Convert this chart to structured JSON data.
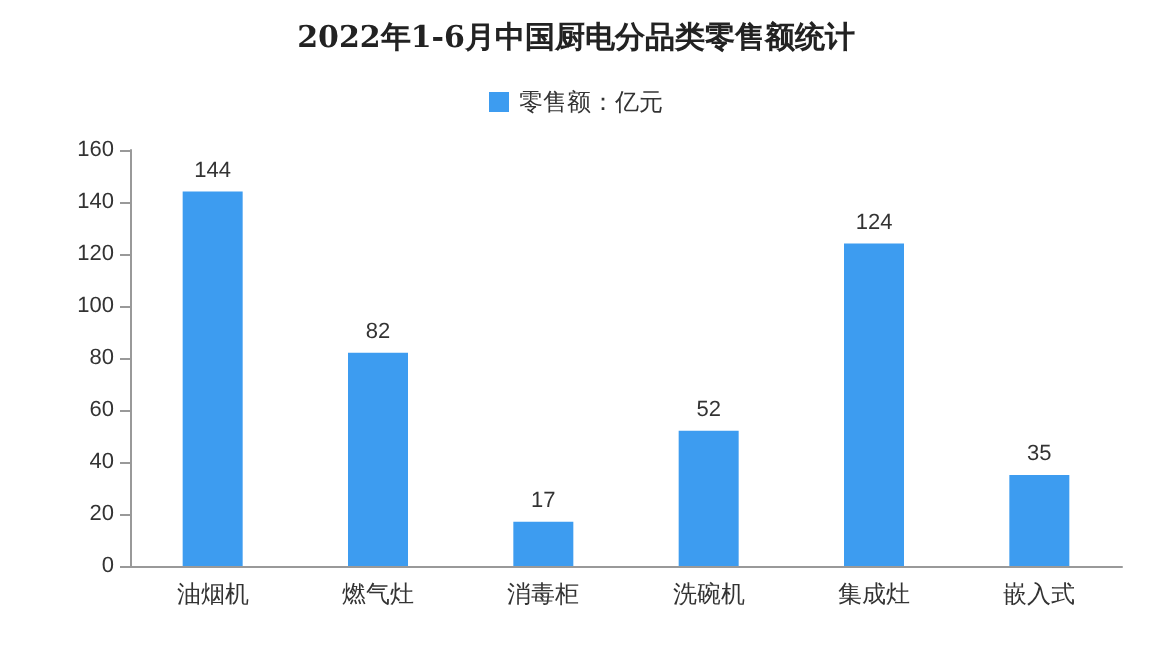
{
  "chart_data": {
    "type": "bar",
    "title": "2022年1-6月中国厨电分品类零售额统计",
    "categories": [
      "油烟机",
      "燃气灶",
      "消毒柜",
      "洗碗机",
      "集成灶",
      "嵌入式"
    ],
    "series": [
      {
        "name": "零售额：亿元",
        "color": "#3d9cf0",
        "values": [
          144,
          82,
          17,
          52,
          124,
          35
        ]
      }
    ],
    "ylim": [
      0,
      160
    ],
    "yticks": [
      0,
      20,
      40,
      60,
      80,
      100,
      120,
      140,
      160
    ],
    "grid": false,
    "legend": "top",
    "data_labels": true
  }
}
